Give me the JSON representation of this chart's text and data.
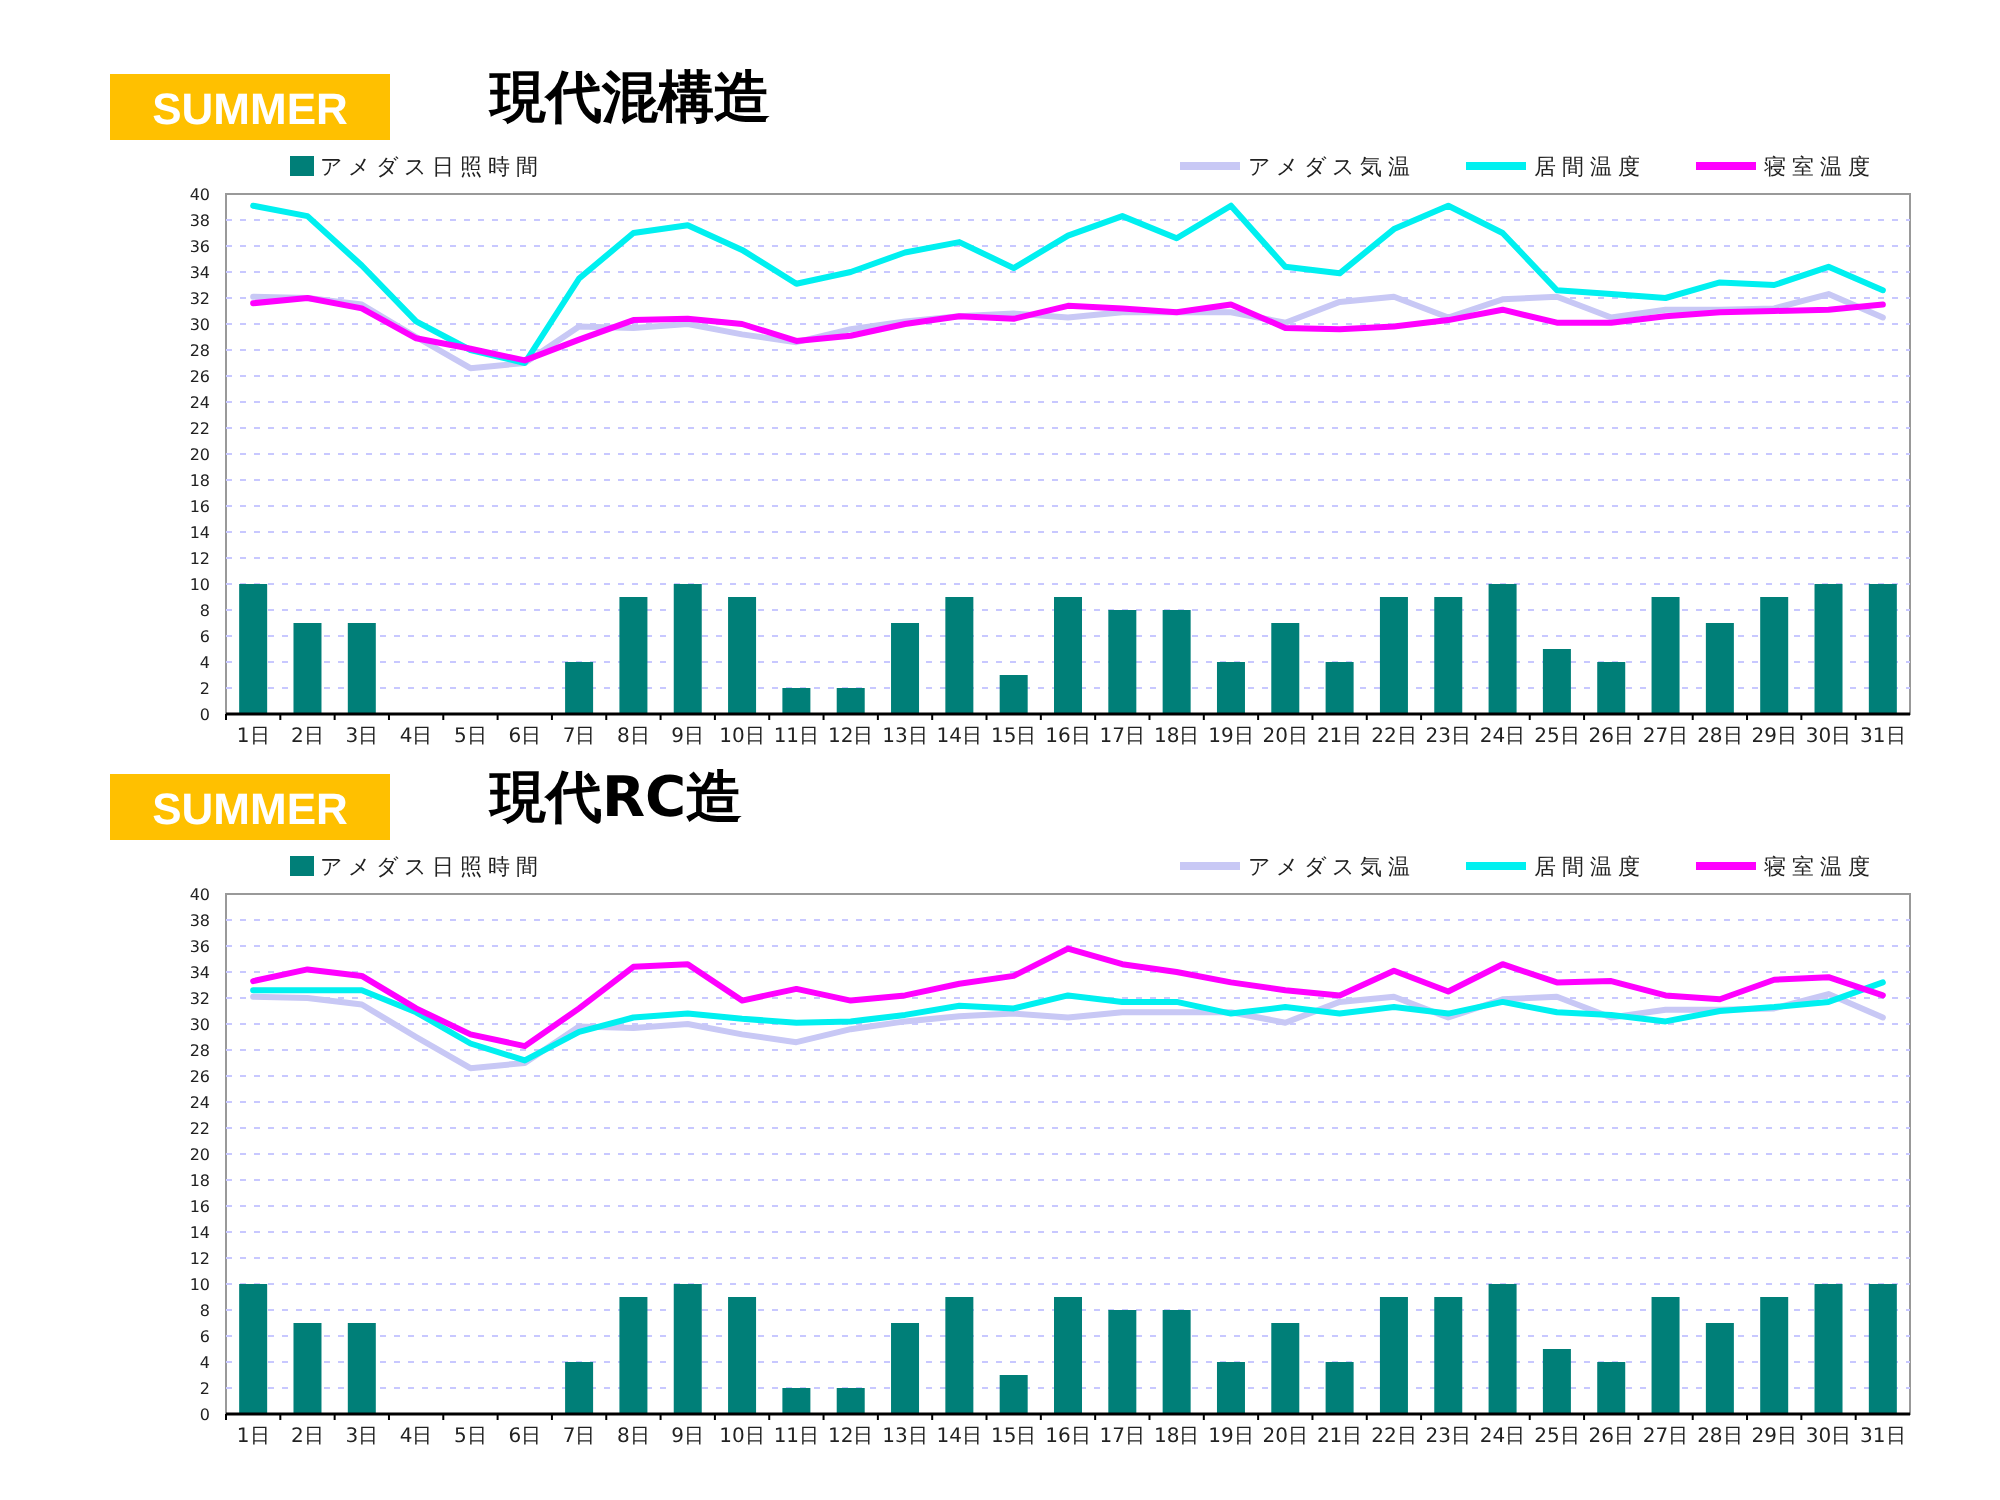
{
  "chart_data": [
    {
      "type": "bar",
      "title": "現代混構造",
      "subtitle": "SUMMER",
      "categories": [
        "1日",
        "2日",
        "3日",
        "4日",
        "5日",
        "6日",
        "7日",
        "8日",
        "9日",
        "10日",
        "11日",
        "12日",
        "13日",
        "14日",
        "15日",
        "16日",
        "17日",
        "18日",
        "19日",
        "20日",
        "21日",
        "22日",
        "23日",
        "24日",
        "25日",
        "26日",
        "27日",
        "28日",
        "29日",
        "30日",
        "31日"
      ],
      "series": [
        {
          "name": "アメダス日照時間",
          "color": "#007f78",
          "values": [
            10,
            7,
            7,
            0,
            0,
            0,
            4,
            9,
            10,
            9,
            2,
            2,
            7,
            9,
            3,
            9,
            8,
            8,
            4,
            7,
            4,
            9,
            9,
            10,
            5,
            4,
            9,
            7,
            9,
            10,
            10
          ]
        },
        {
          "name": "アメダス気温",
          "type": "line",
          "color": "#c8c8f5",
          "values": [
            32.1,
            32.0,
            31.5,
            29.0,
            26.6,
            27.0,
            29.8,
            29.7,
            30.0,
            29.2,
            28.6,
            29.6,
            30.2,
            30.6,
            30.8,
            30.5,
            30.9,
            30.9,
            30.9,
            30.1,
            31.7,
            32.1,
            30.5,
            31.9,
            32.1,
            30.5,
            31.1,
            31.1,
            31.2,
            32.3,
            30.5
          ]
        },
        {
          "name": "居間温度",
          "type": "line",
          "color": "#00f0f0",
          "values": [
            39.1,
            38.3,
            34.5,
            30.2,
            28.0,
            27.0,
            33.5,
            37.0,
            37.6,
            35.7,
            33.1,
            34.0,
            35.5,
            36.3,
            34.3,
            36.8,
            38.3,
            36.6,
            39.1,
            34.4,
            33.9,
            37.3,
            39.1,
            37.0,
            32.6,
            32.3,
            32.0,
            33.2,
            33.0,
            34.4,
            32.6
          ]
        },
        {
          "name": "寝室温度",
          "type": "line",
          "color": "#ff00ff",
          "values": [
            31.6,
            32.0,
            31.2,
            28.9,
            28.1,
            27.2,
            28.8,
            30.3,
            30.4,
            30.0,
            28.7,
            29.1,
            30.0,
            30.6,
            30.4,
            31.4,
            31.2,
            30.9,
            31.5,
            29.7,
            29.6,
            29.8,
            30.3,
            31.1,
            30.1,
            30.1,
            30.6,
            30.9,
            31.0,
            31.1,
            31.5
          ]
        }
      ],
      "ylim": [
        0,
        40
      ],
      "yticks": [
        0,
        2,
        4,
        6,
        8,
        10,
        12,
        14,
        16,
        18,
        20,
        22,
        24,
        26,
        28,
        30,
        32,
        34,
        36,
        38,
        40
      ],
      "grid": "y",
      "legend": "top"
    },
    {
      "type": "bar",
      "title": "現代RC造",
      "subtitle": "SUMMER",
      "categories": [
        "1日",
        "2日",
        "3日",
        "4日",
        "5日",
        "6日",
        "7日",
        "8日",
        "9日",
        "10日",
        "11日",
        "12日",
        "13日",
        "14日",
        "15日",
        "16日",
        "17日",
        "18日",
        "19日",
        "20日",
        "21日",
        "22日",
        "23日",
        "24日",
        "25日",
        "26日",
        "27日",
        "28日",
        "29日",
        "30日",
        "31日"
      ],
      "series": [
        {
          "name": "アメダス日照時間",
          "color": "#007f78",
          "values": [
            10,
            7,
            7,
            0,
            0,
            0,
            4,
            9,
            10,
            9,
            2,
            2,
            7,
            9,
            3,
            9,
            8,
            8,
            4,
            7,
            4,
            9,
            9,
            10,
            5,
            4,
            9,
            7,
            9,
            10,
            10
          ]
        },
        {
          "name": "アメダス気温",
          "type": "line",
          "color": "#c8c8f5",
          "values": [
            32.1,
            32.0,
            31.5,
            29.0,
            26.6,
            27.0,
            29.8,
            29.7,
            30.0,
            29.2,
            28.6,
            29.6,
            30.2,
            30.6,
            30.8,
            30.5,
            30.9,
            30.9,
            30.9,
            30.1,
            31.7,
            32.1,
            30.5,
            31.9,
            32.1,
            30.5,
            31.1,
            31.1,
            31.2,
            32.3,
            30.5
          ]
        },
        {
          "name": "居間温度",
          "type": "line",
          "color": "#00f0f0",
          "values": [
            32.6,
            32.6,
            32.6,
            30.9,
            28.5,
            27.2,
            29.4,
            30.5,
            30.8,
            30.4,
            30.1,
            30.2,
            30.7,
            31.4,
            31.2,
            32.2,
            31.7,
            31.7,
            30.8,
            31.3,
            30.8,
            31.3,
            30.8,
            31.7,
            30.9,
            30.7,
            30.2,
            31.0,
            31.3,
            31.7,
            33.2
          ]
        },
        {
          "name": "寝室温度",
          "type": "line",
          "color": "#ff00ff",
          "values": [
            33.3,
            34.2,
            33.7,
            31.2,
            29.2,
            28.3,
            31.2,
            34.4,
            34.6,
            31.8,
            32.7,
            31.8,
            32.2,
            33.1,
            33.7,
            35.8,
            34.6,
            34.0,
            33.2,
            32.6,
            32.2,
            34.1,
            32.5,
            34.6,
            33.2,
            33.3,
            32.2,
            31.9,
            33.4,
            33.6,
            32.2
          ]
        }
      ],
      "ylim": [
        0,
        40
      ],
      "yticks": [
        0,
        2,
        4,
        6,
        8,
        10,
        12,
        14,
        16,
        18,
        20,
        22,
        24,
        26,
        28,
        30,
        32,
        34,
        36,
        38,
        40
      ],
      "grid": "y",
      "legend": "top"
    }
  ]
}
